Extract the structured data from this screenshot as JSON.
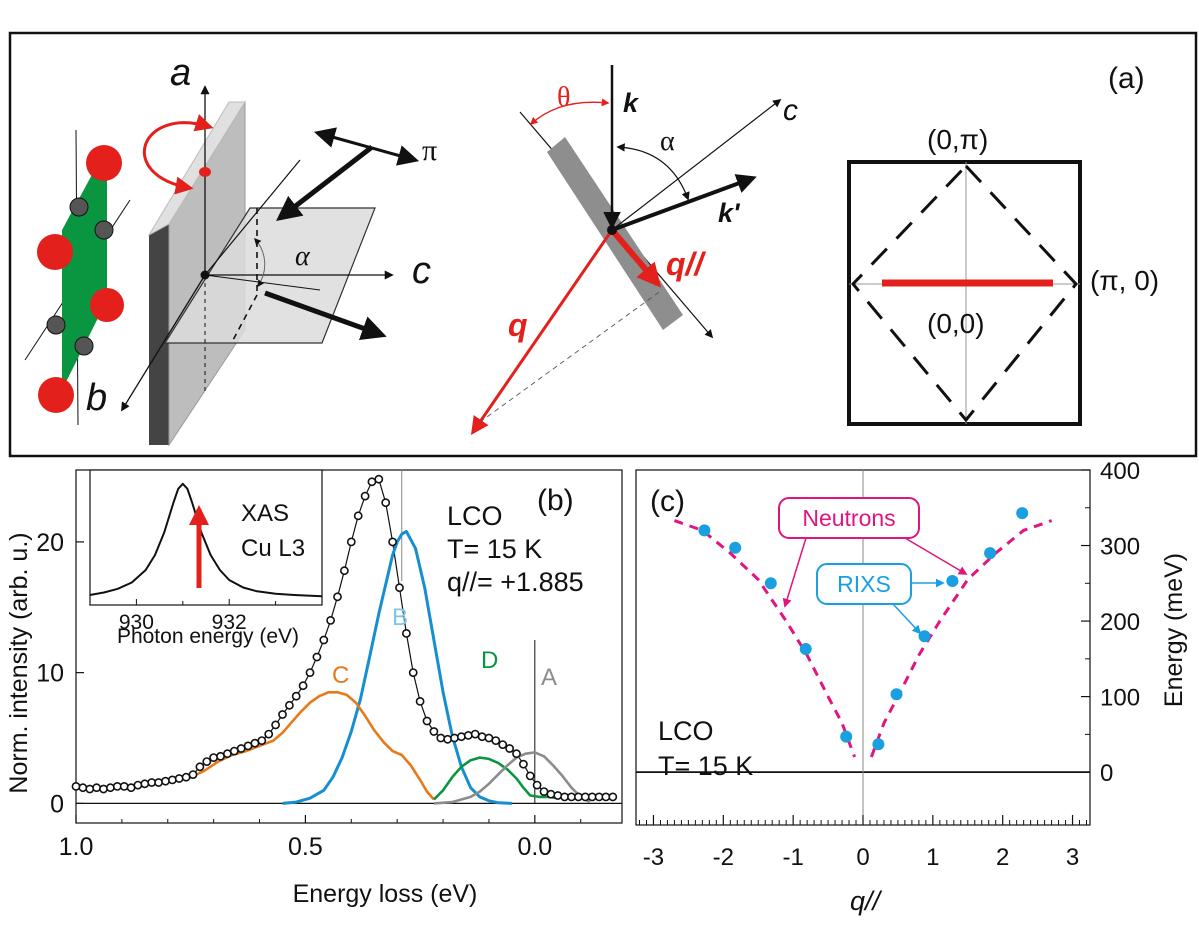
{
  "panel_a": {
    "panel_label": "(a)",
    "axis_a": "a",
    "axis_b": "b",
    "axis_c": "c",
    "pi_symbol": "π",
    "alpha_symbol": "α",
    "theta_symbol": "θ",
    "k_label": "k",
    "k_prime_label": "k'",
    "c_label2": "c",
    "q_label": "q",
    "q_par_label": "q//",
    "bz_top": "(0,π)",
    "bz_right": "(π, 0)",
    "bz_center": "(0,0)"
  },
  "colors": {
    "red": "#e3201b",
    "green": "#0a9640",
    "orange": "#e67a19",
    "blue": "#168fd0",
    "gray": "#8c8c8c",
    "light_blue_text": "#7fc4ec",
    "magenta": "#e0157f",
    "rixs_dot": "#1aa0e0"
  },
  "chart_data": [
    {
      "type": "line",
      "panel_label": "(b)",
      "xlabel": "Energy loss (eV)",
      "ylabel": "Norm. intensity (arb. u.)",
      "xlim": [
        1.0,
        -0.19
      ],
      "ylim": [
        -1.5,
        25.5
      ],
      "x_ticks": [
        1.0,
        0.5,
        0.0
      ],
      "x_tick_labels": [
        "1.0",
        "0.5",
        "0.0"
      ],
      "y_ticks": [
        0,
        10,
        20
      ],
      "y_tick_labels": [
        "0",
        "10",
        "20"
      ],
      "annotation_lines": [
        "LCO",
        "T= 15 K",
        "q//= +1.885"
      ],
      "component_labels": {
        "A": "A",
        "B": "B",
        "C": "C",
        "D": "D"
      },
      "series": [
        {
          "name": "data",
          "x": [
            1.0,
            0.985,
            0.97,
            0.955,
            0.94,
            0.925,
            0.91,
            0.895,
            0.88,
            0.865,
            0.85,
            0.835,
            0.82,
            0.805,
            0.79,
            0.775,
            0.76,
            0.745,
            0.73,
            0.715,
            0.7,
            0.685,
            0.67,
            0.655,
            0.64,
            0.625,
            0.61,
            0.595,
            0.58,
            0.565,
            0.55,
            0.535,
            0.52,
            0.505,
            0.49,
            0.475,
            0.46,
            0.445,
            0.43,
            0.415,
            0.4,
            0.385,
            0.37,
            0.355,
            0.34,
            0.325,
            0.31,
            0.295,
            0.28,
            0.265,
            0.25,
            0.235,
            0.22,
            0.205,
            0.19,
            0.175,
            0.16,
            0.145,
            0.13,
            0.115,
            0.1,
            0.085,
            0.07,
            0.055,
            0.04,
            0.025,
            0.01,
            -0.005,
            -0.02,
            -0.035,
            -0.05,
            -0.065,
            -0.08,
            -0.095,
            -0.11,
            -0.125,
            -0.14,
            -0.155,
            -0.17
          ],
          "y": [
            1.3,
            1.2,
            1.1,
            1.2,
            1.1,
            1.2,
            1.3,
            1.3,
            1.2,
            1.4,
            1.5,
            1.6,
            1.6,
            1.7,
            1.8,
            1.9,
            2.0,
            2.2,
            2.8,
            3.2,
            3.5,
            3.6,
            3.8,
            4.0,
            4.2,
            4.4,
            4.6,
            4.8,
            5.3,
            6.0,
            6.8,
            7.5,
            8.2,
            9.0,
            10.0,
            11.2,
            12.5,
            14.0,
            15.8,
            17.8,
            20.0,
            22.0,
            23.5,
            24.6,
            24.8,
            23.0,
            20.0,
            16.5,
            13.0,
            10.0,
            7.8,
            6.3,
            5.5,
            5.0,
            4.9,
            5.0,
            5.1,
            5.2,
            5.3,
            5.1,
            5.0,
            4.8,
            4.5,
            4.2,
            3.8,
            3.0,
            2.1,
            1.4,
            0.9,
            0.7,
            0.6,
            0.5,
            0.5,
            0.5,
            0.5,
            0.5,
            0.5,
            0.5,
            0.5
          ]
        },
        {
          "name": "B",
          "x": [
            0.55,
            0.52,
            0.49,
            0.46,
            0.44,
            0.42,
            0.4,
            0.38,
            0.36,
            0.34,
            0.32,
            0.31,
            0.3,
            0.29,
            0.28,
            0.26,
            0.24,
            0.22,
            0.2,
            0.18,
            0.16,
            0.14,
            0.12,
            0.1,
            0.08,
            0.05
          ],
          "y": [
            0.0,
            0.1,
            0.4,
            1.0,
            2.0,
            3.5,
            5.5,
            8.0,
            11.2,
            14.5,
            17.5,
            19.0,
            20.0,
            20.6,
            20.8,
            19.5,
            16.5,
            12.5,
            8.5,
            5.2,
            2.8,
            1.2,
            0.5,
            0.2,
            0.05,
            0.0
          ]
        },
        {
          "name": "C",
          "x": [
            1.0,
            0.95,
            0.9,
            0.85,
            0.8,
            0.75,
            0.72,
            0.69,
            0.66,
            0.63,
            0.6,
            0.57,
            0.55,
            0.53,
            0.51,
            0.49,
            0.47,
            0.45,
            0.43,
            0.41,
            0.39,
            0.37,
            0.35,
            0.33,
            0.31,
            0.29,
            0.27,
            0.25,
            0.235,
            0.22
          ],
          "y": [
            1.3,
            1.2,
            1.3,
            1.5,
            1.7,
            2.0,
            2.5,
            3.2,
            3.7,
            4.0,
            4.4,
            4.8,
            5.4,
            6.2,
            7.0,
            7.7,
            8.2,
            8.5,
            8.5,
            8.3,
            7.7,
            6.7,
            5.6,
            4.7,
            4.0,
            3.7,
            2.9,
            1.8,
            0.9,
            0.3
          ]
        },
        {
          "name": "D",
          "x": [
            0.22,
            0.2,
            0.18,
            0.16,
            0.14,
            0.12,
            0.1,
            0.08,
            0.06,
            0.04,
            0.025,
            0.01,
            -0.01,
            -0.03,
            -0.05
          ],
          "y": [
            0.3,
            1.0,
            2.0,
            2.8,
            3.3,
            3.5,
            3.4,
            3.1,
            2.6,
            1.9,
            1.2,
            0.6,
            0.5,
            0.5,
            0.4
          ]
        },
        {
          "name": "A",
          "x": [
            0.22,
            0.18,
            0.14,
            0.12,
            0.1,
            0.08,
            0.06,
            0.04,
            0.02,
            0.0,
            -0.02,
            -0.04,
            -0.06,
            -0.08,
            -0.1,
            -0.12
          ],
          "y": [
            0.0,
            0.1,
            0.5,
            0.9,
            1.5,
            2.2,
            2.9,
            3.5,
            3.8,
            3.9,
            3.6,
            2.9,
            2.1,
            1.2,
            0.5,
            0.1
          ]
        }
      ]
    },
    {
      "type": "line",
      "panel_label": "inset",
      "xlabel": "Photon energy (eV)",
      "annotation_lines": [
        "XAS",
        "Cu L3"
      ],
      "xlim": [
        929.0,
        934.0
      ],
      "ylim": [
        0,
        1.08
      ],
      "x_ticks": [
        930,
        932
      ],
      "x_tick_labels": [
        "930",
        "932"
      ],
      "series": [
        {
          "name": "XAS",
          "x": [
            929.0,
            929.3,
            929.6,
            929.9,
            930.2,
            930.4,
            930.6,
            930.8,
            930.9,
            931.0,
            931.1,
            931.2,
            931.4,
            931.6,
            931.8,
            932.0,
            932.3,
            932.6,
            933.0,
            933.4,
            934.0
          ],
          "y": [
            0.08,
            0.1,
            0.13,
            0.18,
            0.28,
            0.4,
            0.58,
            0.82,
            0.93,
            0.97,
            0.93,
            0.82,
            0.58,
            0.4,
            0.28,
            0.2,
            0.14,
            0.11,
            0.09,
            0.08,
            0.07
          ]
        }
      ]
    },
    {
      "type": "scatter",
      "panel_label": "(c)",
      "xlabel": "q//",
      "ylabel": "Energy (meV)",
      "xlim": [
        -3.25,
        3.25
      ],
      "ylim": [
        -70,
        400
      ],
      "x_ticks": [
        -3,
        -2,
        -1,
        0,
        1,
        2,
        3
      ],
      "x_tick_labels": [
        "-3",
        "-2",
        "-1",
        "0",
        "1",
        "2",
        "3"
      ],
      "y_ticks": [
        0,
        100,
        200,
        300,
        400
      ],
      "y_tick_labels": [
        "0",
        "100",
        "200",
        "300",
        "400"
      ],
      "annotation_lines": [
        "LCO",
        "T= 15 K"
      ],
      "callouts": [
        "Neutrons",
        "RIXS"
      ],
      "series": [
        {
          "name": "RIXS",
          "x": [
            -2.27,
            -1.83,
            -1.32,
            -0.82,
            -0.24,
            0.22,
            0.48,
            0.88,
            1.28,
            1.82,
            2.28
          ],
          "y": [
            320,
            297,
            250,
            163,
            47,
            37,
            103,
            180,
            253,
            290,
            343
          ]
        },
        {
          "name": "Neutrons",
          "x": [
            -2.7,
            -2.3,
            -1.9,
            -1.5,
            -1.1,
            -0.8,
            -0.5,
            -0.3,
            -0.12,
            0.12,
            0.3,
            0.5,
            0.8,
            1.1,
            1.5,
            1.9,
            2.3,
            2.7
          ],
          "y": [
            333,
            320,
            290,
            255,
            200,
            155,
            100,
            65,
            20,
            20,
            65,
            100,
            155,
            200,
            255,
            290,
            320,
            333
          ]
        }
      ]
    }
  ]
}
